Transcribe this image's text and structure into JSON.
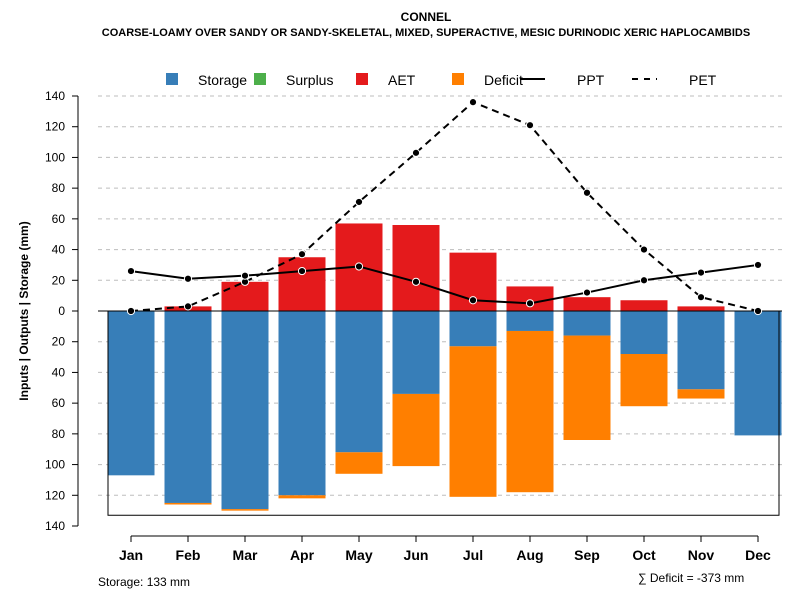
{
  "chart_data": {
    "type": "bar",
    "title": "CONNEL",
    "subtitle": "COARSE-LOAMY OVER SANDY OR SANDY-SKELETAL, MIXED, SUPERACTIVE, MESIC DURINODIC XERIC HAPLOCAMBIDS",
    "ylabel": "Inputs | Outputs | Storage    (mm)",
    "ylim": [
      -140,
      140
    ],
    "yticks": [
      140,
      120,
      100,
      80,
      60,
      40,
      20,
      0,
      -20,
      -40,
      -60,
      -80,
      -100,
      -120,
      -140
    ],
    "ytick_labels": [
      "140",
      "120",
      "100",
      "80",
      "60",
      "40",
      "20",
      "0",
      "20",
      "40",
      "60",
      "80",
      "100",
      "120",
      "140"
    ],
    "categories": [
      "Jan",
      "Feb",
      "Mar",
      "Apr",
      "May",
      "Jun",
      "Jul",
      "Aug",
      "Sep",
      "Oct",
      "Nov",
      "Dec"
    ],
    "legend": [
      {
        "label": "Storage",
        "kind": "box",
        "color": "#377EB8"
      },
      {
        "label": "Surplus",
        "kind": "box",
        "color": "#4DAF4A"
      },
      {
        "label": "AET",
        "kind": "box",
        "color": "#E41A1C"
      },
      {
        "label": "Deficit",
        "kind": "box",
        "color": "#FF7F00"
      },
      {
        "label": "PPT",
        "kind": "solid-line",
        "color": "#000000"
      },
      {
        "label": "PET",
        "kind": "dashed-line",
        "color": "#000000"
      }
    ],
    "series": [
      {
        "name": "AET",
        "color": "#E41A1C",
        "values": [
          0,
          3,
          19,
          35,
          57,
          56,
          38,
          16,
          9,
          7,
          3,
          0
        ]
      },
      {
        "name": "Storage",
        "color": "#377EB8",
        "values": [
          107,
          125,
          129,
          120,
          92,
          54,
          23,
          13,
          16,
          28,
          51,
          81
        ]
      },
      {
        "name": "Deficit",
        "color": "#FF7F00",
        "values": [
          0,
          1,
          1,
          2,
          14,
          47,
          98,
          105,
          68,
          34,
          6,
          0
        ]
      },
      {
        "name": "Surplus",
        "color": "#4DAF4A",
        "values": [
          0,
          0,
          0,
          0,
          0,
          0,
          0,
          0,
          0,
          0,
          0,
          0
        ]
      },
      {
        "name": "PPT",
        "color": "#000000",
        "values": [
          26,
          21,
          23,
          26,
          29,
          19,
          7,
          5,
          12,
          20,
          25,
          30
        ]
      },
      {
        "name": "PET",
        "color": "#000000",
        "values": [
          0,
          3,
          19,
          37,
          71,
          103,
          136,
          121,
          77,
          40,
          9,
          0
        ]
      }
    ],
    "storage_capacity": 133,
    "storage_note": "Storage: 133 mm",
    "deficit_note": "∑ Deficit = -373 mm"
  }
}
